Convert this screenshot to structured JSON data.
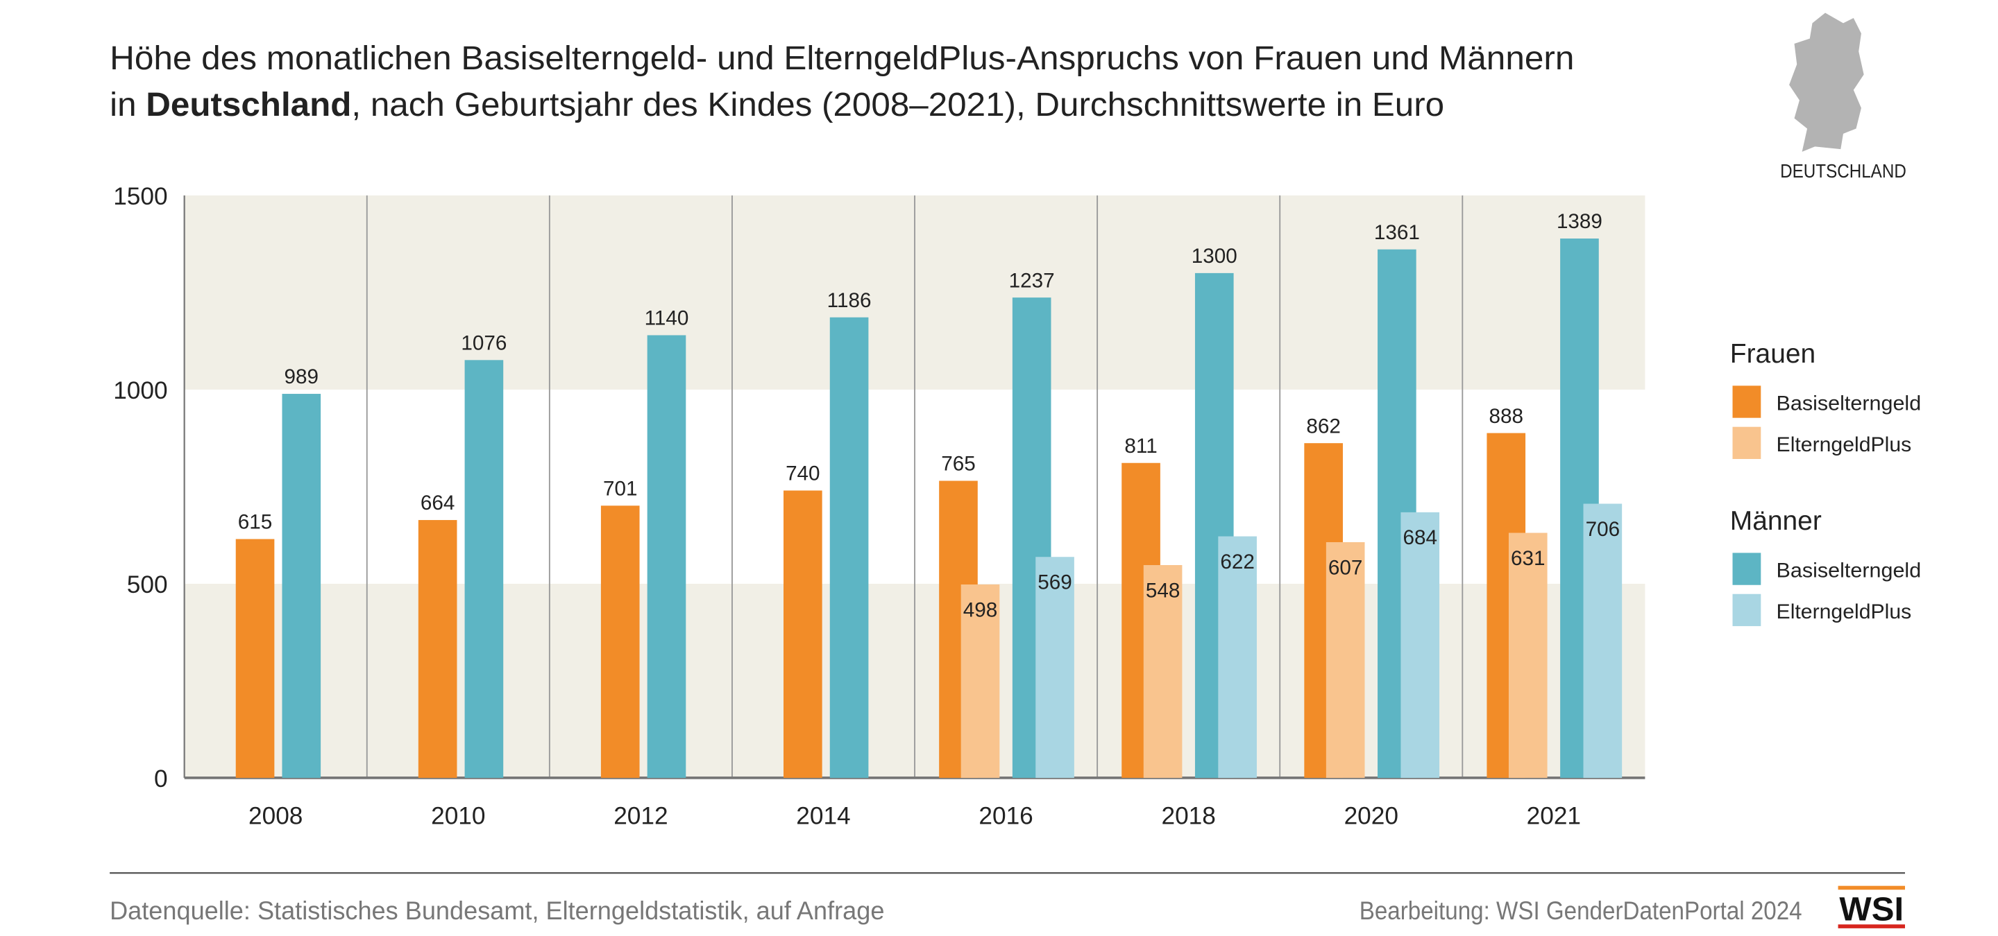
{
  "chart_data": {
    "type": "bar",
    "title": [
      "Höhe des monatlichen Basiselterngeld- und ElterngeldPlus-Anspruchs von Frauen und Männern",
      [
        "in ",
        "Deutschland",
        ", nach Geburtsjahr des Kindes (2008–2021), Durchschnittswerte in Euro"
      ]
    ],
    "map_label": "DEUTSCHLAND",
    "categories": [
      "2008",
      "2010",
      "2012",
      "2014",
      "2016",
      "2018",
      "2020",
      "2021"
    ],
    "series": [
      {
        "group": "Frauen",
        "name": "Basiselterngeld",
        "color": "#f28c28",
        "values": [
          615,
          664,
          701,
          740,
          765,
          811,
          862,
          888
        ]
      },
      {
        "group": "Frauen",
        "name": "ElterngeldPlus",
        "color": "#f9c48e",
        "values": [
          null,
          null,
          null,
          null,
          498,
          548,
          607,
          631
        ]
      },
      {
        "group": "Männer",
        "name": "Basiselterngeld",
        "color": "#5db5c4",
        "values": [
          989,
          1076,
          1140,
          1186,
          1237,
          1300,
          1361,
          1389
        ]
      },
      {
        "group": "Männer",
        "name": "ElterngeldPlus",
        "color": "#a9d6e3",
        "values": [
          null,
          null,
          null,
          null,
          569,
          622,
          684,
          706
        ]
      }
    ],
    "ylim": [
      0,
      1500
    ],
    "yticks": [
      0,
      500,
      1000,
      1500
    ],
    "source": "Datenquelle: Statistisches Bundesamt, Elterngeldstatistik, auf Anfrage",
    "credit": "Bearbeitung: WSI GenderDatenPortal 2024",
    "logo": "WSI"
  }
}
